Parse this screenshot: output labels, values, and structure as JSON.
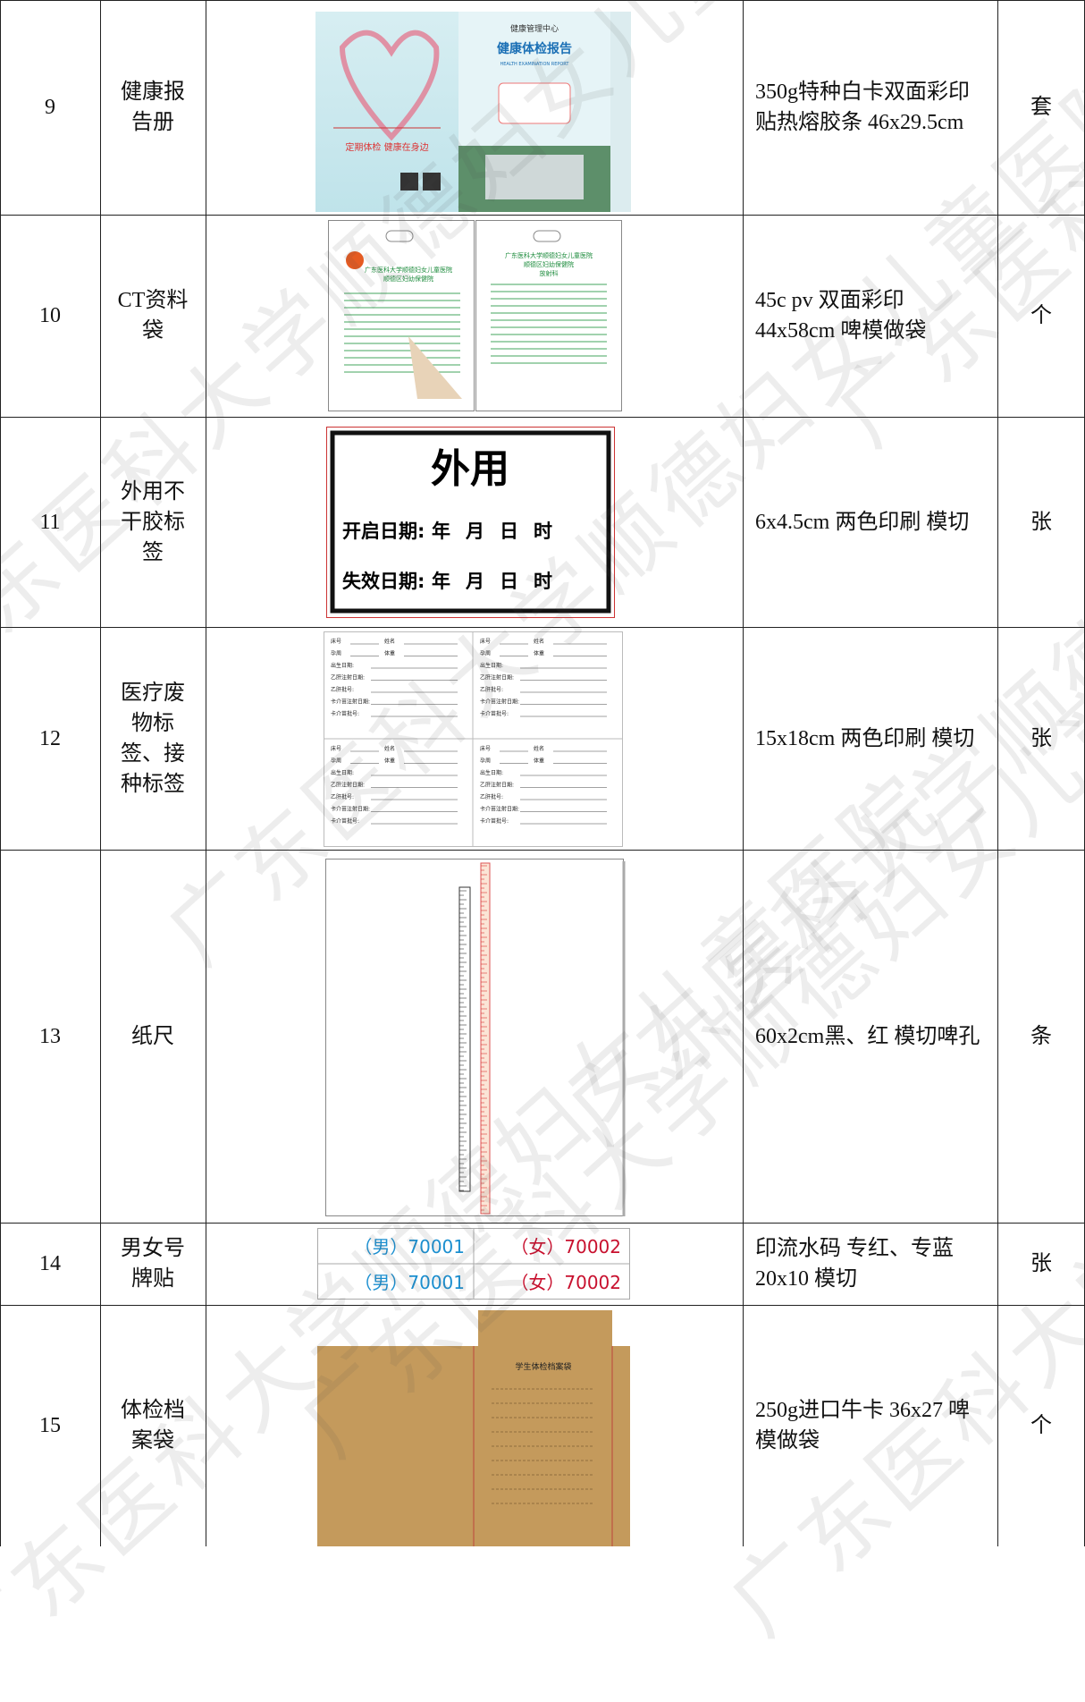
{
  "watermark": "广东医科大学顺德妇女儿童医院",
  "rows": [
    {
      "no": "9",
      "name": "健康报告册",
      "spec": "350g特种白卡双面彩印 贴热熔胶条 46x29.5cm",
      "unit": "套",
      "image": {
        "org": "健康管理中心",
        "title": "健康体检报告",
        "subtitle": "HEALTH EXAMINATION REPORT",
        "slogan": "定期体检 健康在身边"
      }
    },
    {
      "no": "10",
      "name": "CT资料袋",
      "spec": "45c pv 双面彩印 44x58cm 啤模做袋",
      "unit": "个",
      "image": {
        "hospital": "广东医科大学顺德妇女儿童医院",
        "branch": "顺德区妇幼保健院",
        "dept": "放射科"
      }
    },
    {
      "no": "11",
      "name": "外用不干胶标签",
      "spec": "6x4.5cm 两色印刷 模切",
      "unit": "张",
      "image": {
        "title": "外用",
        "open": "开启日期:",
        "expire": "失效日期:",
        "parts": [
          "年",
          "月",
          "日",
          "时"
        ]
      }
    },
    {
      "no": "12",
      "name": "医疗废物标签、接种标签",
      "spec": "15x18cm 两色印刷 模切",
      "unit": "张",
      "image": {
        "fields": [
          "床号",
          "姓名",
          "孕周",
          "体重",
          "出生日期:",
          "乙肝注射日期:",
          "乙肝批号:",
          "卡介苗注射日期:",
          "卡介苗批号:"
        ]
      }
    },
    {
      "no": "13",
      "name": "纸尺",
      "spec": "60x2cm黑、红 模切啤孔",
      "unit": "条"
    },
    {
      "no": "14",
      "name": "男女号牌贴",
      "spec": "印流水码 专红、专蓝 20x10 模切",
      "unit": "张",
      "image": {
        "male": "（男）70001",
        "female": "（女）70002"
      }
    },
    {
      "no": "15",
      "name": "体检档案袋",
      "spec": "250g进口牛卡 36x27 啤模做袋",
      "unit": "个",
      "image": {
        "title": "学生体检档案袋"
      }
    }
  ]
}
